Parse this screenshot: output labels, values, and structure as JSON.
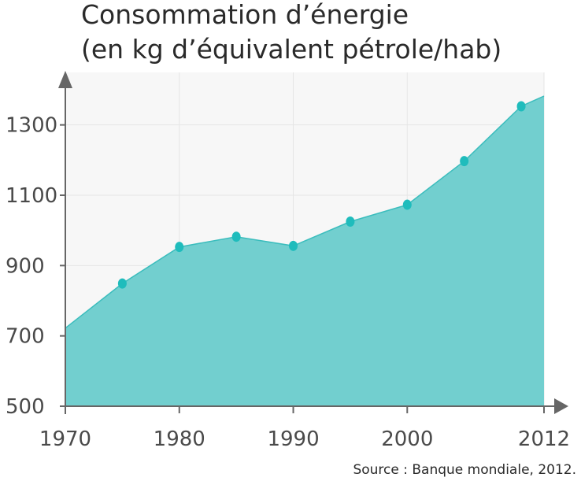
{
  "chart_data": {
    "type": "area",
    "title": "Consommation d’énergie",
    "subtitle": "(en kg d’équivalent pétrole/hab)",
    "xlabel": "",
    "ylabel": "",
    "x_ticks": [
      "1970",
      "1980",
      "1990",
      "2000",
      "2012"
    ],
    "y_ticks": [
      "500",
      "700",
      "900",
      "1100",
      "1300"
    ],
    "xlim": [
      1970,
      2012
    ],
    "ylim": [
      500,
      1400
    ],
    "grid": true,
    "legend": "none",
    "series": [
      {
        "line": [
          {
            "x": 1970,
            "y": 722
          },
          {
            "x": 1975,
            "y": 849
          },
          {
            "x": 1980,
            "y": 953
          },
          {
            "x": 1985,
            "y": 982
          },
          {
            "x": 1990,
            "y": 956
          },
          {
            "x": 1995,
            "y": 1025
          },
          {
            "x": 2000,
            "y": 1073
          },
          {
            "x": 2005,
            "y": 1197
          },
          {
            "x": 2010,
            "y": 1353
          },
          {
            "x": 2012,
            "y": 1382
          }
        ],
        "markers": [
          {
            "x": 1975,
            "y": 849
          },
          {
            "x": 1980,
            "y": 953
          },
          {
            "x": 1985,
            "y": 982
          },
          {
            "x": 1990,
            "y": 956
          },
          {
            "x": 1995,
            "y": 1025
          },
          {
            "x": 2000,
            "y": 1073
          },
          {
            "x": 2005,
            "y": 1197
          },
          {
            "x": 2010,
            "y": 1353
          }
        ]
      }
    ],
    "source": "Source : Banque mondiale, 2012.",
    "colors": {
      "fill": "#72cfcf",
      "line": "#3bbdbd",
      "marker": "#1fbcbc",
      "plot_background": "#f7f7f7",
      "grid": "#e6e6e6",
      "axis": "#666666"
    }
  }
}
